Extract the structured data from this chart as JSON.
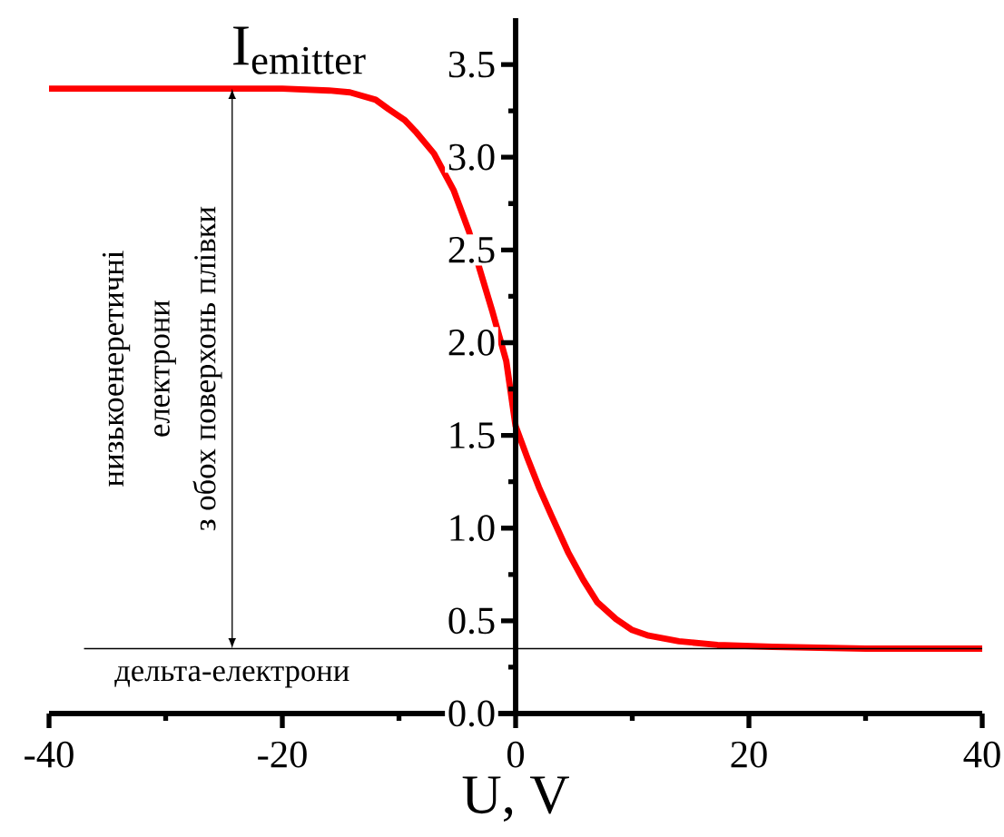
{
  "chart_data": {
    "type": "line",
    "xlabel": "U, V",
    "ylabel": "I$_{emitter}$",
    "x": [
      -40,
      -30,
      -20,
      -16,
      -14.2,
      -12,
      -10.9,
      -9.5,
      -8.6,
      -7,
      -5.3,
      -4,
      -3.1,
      -2,
      -0.8,
      0,
      1,
      2,
      3.05,
      4.5,
      5.8,
      7,
      8.6,
      10,
      11.4,
      14,
      17.3,
      22,
      30,
      40
    ],
    "series": [
      {
        "color": "#ff0000",
        "values": [
          3.37,
          3.37,
          3.37,
          3.36,
          3.35,
          3.31,
          3.26,
          3.2,
          3.14,
          3.02,
          2.82,
          2.6,
          2.4,
          2.17,
          1.9,
          1.55,
          1.38,
          1.22,
          1.07,
          0.87,
          0.72,
          0.6,
          0.51,
          0.45,
          0.42,
          0.39,
          0.37,
          0.36,
          0.35,
          0.35
        ]
      }
    ],
    "xlim": [
      -40,
      40
    ],
    "ylim": [
      0,
      3.75
    ],
    "xticks": [
      -40,
      -20,
      0,
      20,
      40
    ],
    "yticks": [
      {
        "value": 0,
        "label": "0.0"
      },
      0.5,
      {
        "value": 1,
        "label": "1.0"
      },
      1.5,
      {
        "value": 2,
        "label": "2.0"
      },
      2.5,
      {
        "value": 3,
        "label": "3.0"
      },
      3.5
    ],
    "ref_lines": [
      {
        "axis": "y",
        "value": 0.35,
        "color": "#000000"
      }
    ],
    "annotations": [
      "з обох поверхонь плівки",
      "електрони",
      "низькоенеретичні",
      "дельта-електрони"
    ],
    "grid": false,
    "marker": "none",
    "line_style": "solid"
  }
}
